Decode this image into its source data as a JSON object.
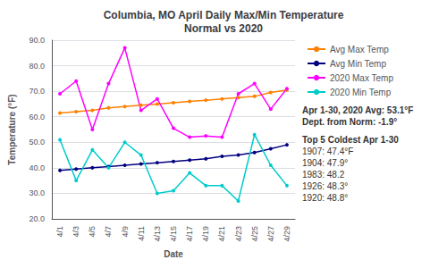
{
  "chart_data": {
    "type": "line",
    "title": "Columbia, MO April Daily Max/Min Temperature\nNormal vs 2020",
    "x_label": "Date",
    "y_label": "Temperature (°F)",
    "categories": [
      "4/1",
      "4/3",
      "4/5",
      "4/7",
      "4/9",
      "4/11",
      "4/13",
      "4/15",
      "4/17",
      "4/19",
      "4/21",
      "4/23",
      "4/25",
      "4/27",
      "4/29"
    ],
    "series": [
      {
        "name": "Avg Max Temp",
        "color": "#FF8000",
        "marker": "circle",
        "line_style": "solid",
        "values": [
          61.5,
          62.0,
          62.5,
          63.5,
          64.0,
          64.5,
          65.0,
          65.5,
          66.0,
          66.5,
          67.0,
          67.5,
          68.0,
          69.5,
          70.5
        ]
      },
      {
        "name": "Avg Min Temp",
        "color": "#000080",
        "marker": "circle",
        "line_style": "solid",
        "values": [
          39.0,
          39.5,
          40.0,
          40.5,
          41.0,
          41.5,
          42.0,
          42.5,
          43.0,
          43.5,
          44.5,
          45.0,
          46.0,
          47.5,
          49.0
        ]
      },
      {
        "name": "2020 Max Temp",
        "color": "#FF00FF",
        "marker": "circle",
        "line_style": "solid",
        "values": [
          69.0,
          74.0,
          55.0,
          73.0,
          87.0,
          62.5,
          67.0,
          55.5,
          52.0,
          52.5,
          52.0,
          69.0,
          73.0,
          63.0,
          71.0
        ]
      },
      {
        "name": "2020 Min Temp",
        "color": "#00CCCC",
        "marker": "circle",
        "line_style": "solid",
        "values": [
          51.0,
          35.0,
          47.0,
          40.0,
          50.0,
          45.0,
          30.0,
          31.0,
          38.0,
          33.0,
          33.0,
          27.0,
          53.0,
          41.0,
          33.0
        ]
      }
    ],
    "ylim": [
      20.0,
      90.0
    ],
    "yticks": [
      {
        "value": 20,
        "label": "20.0"
      },
      {
        "value": 30,
        "label": "30.0"
      },
      {
        "value": 40,
        "label": "40.0"
      },
      {
        "value": 50,
        "label": "50.0"
      },
      {
        "value": 60,
        "label": "60.0"
      },
      {
        "value": 70,
        "label": "70.0"
      },
      {
        "value": 80,
        "label": "80.0"
      },
      {
        "value": 90,
        "label": "90.0"
      }
    ],
    "grid": true,
    "legend": "right",
    "annotations": [
      "Apr 1-30, 2020 Avg: 53.1°F",
      "Dept. from Norm: -1.9°",
      "Top 5 Coldest Apr 1-30",
      "1907: 47.4°F",
      "1904: 47.9°",
      "1983: 48.2",
      "1926: 48.3°",
      "1920: 48.8°"
    ]
  }
}
